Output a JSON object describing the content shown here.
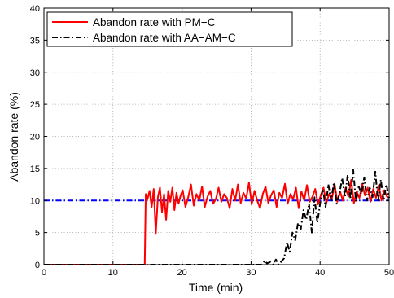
{
  "chart_data": {
    "type": "line",
    "xlabel": "Time (min)",
    "ylabel": "Abandon rate (%)",
    "xlim": [
      0,
      50
    ],
    "ylim": [
      0,
      40
    ],
    "xticks": [
      0,
      10,
      20,
      30,
      40,
      50
    ],
    "yticks": [
      0,
      5,
      10,
      15,
      20,
      25,
      30,
      35,
      40
    ],
    "x_tick_labels": [
      "0",
      "10",
      "20",
      "30",
      "40",
      "50"
    ],
    "y_tick_labels": [
      "0",
      "5",
      "10",
      "15",
      "20",
      "25",
      "30",
      "35",
      "40"
    ],
    "grid": true,
    "legend_position": "top-left",
    "target_line": {
      "y": 10,
      "color": "#0000ff",
      "style": "dash-dot"
    },
    "series": [
      {
        "name": "Abandon rate with PM−C",
        "color": "#ff0000",
        "style": "solid",
        "x": [
          0,
          14.6,
          14.75,
          15.0,
          15.3,
          15.6,
          15.9,
          16.2,
          16.5,
          16.8,
          17.1,
          17.4,
          17.7,
          18.0,
          18.3,
          18.6,
          18.9,
          19.2,
          19.5,
          19.8,
          20.1,
          20.5,
          20.9,
          21.3,
          21.7,
          22.1,
          22.5,
          22.9,
          23.3,
          23.7,
          24.1,
          24.5,
          24.9,
          25.3,
          25.7,
          26.1,
          26.5,
          26.9,
          27.3,
          27.7,
          28.1,
          28.5,
          28.9,
          29.3,
          29.7,
          30.1,
          30.5,
          30.9,
          31.3,
          31.7,
          32.1,
          32.5,
          32.9,
          33.3,
          33.7,
          34.1,
          34.5,
          34.9,
          35.3,
          35.7,
          36.1,
          36.5,
          36.9,
          37.3,
          37.7,
          38.1,
          38.5,
          38.9,
          39.3,
          39.7,
          40.1,
          40.5,
          40.9,
          41.3,
          41.7,
          42.1,
          42.5,
          42.9,
          43.3,
          43.7,
          44.1,
          44.5,
          44.9,
          45.3,
          45.7,
          46.1,
          46.5,
          46.9,
          47.3,
          47.7,
          48.1,
          48.5,
          48.9,
          49.3,
          49.7,
          50.0
        ],
        "y": [
          0,
          0,
          11.0,
          10.2,
          11.5,
          9.0,
          11.8,
          4.8,
          10.5,
          12.0,
          8.2,
          11.0,
          7.0,
          11.5,
          9.8,
          12.0,
          8.5,
          11.2,
          9.5,
          10.8,
          11.6,
          9.0,
          10.5,
          12.5,
          9.2,
          11.0,
          10.0,
          12.2,
          9.0,
          10.6,
          11.5,
          9.5,
          10.2,
          12.0,
          9.8,
          11.0,
          10.4,
          8.8,
          11.8,
          10.0,
          12.5,
          9.6,
          11.2,
          10.3,
          12.8,
          9.4,
          11.5,
          10.0,
          8.8,
          11.0,
          12.2,
          9.6,
          10.8,
          11.6,
          9.0,
          11.2,
          10.4,
          12.6,
          9.5,
          11.0,
          10.2,
          12.0,
          8.8,
          11.4,
          10.0,
          12.4,
          9.8,
          10.6,
          11.8,
          9.4,
          10.8,
          12.0,
          9.6,
          11.0,
          10.2,
          12.6,
          9.8,
          11.4,
          10.0,
          12.0,
          10.6,
          13.2,
          9.6,
          11.4,
          10.4,
          12.6,
          10.8,
          12.0,
          9.8,
          11.8,
          10.4,
          12.4,
          10.0,
          11.6,
          10.6,
          10.4
        ]
      },
      {
        "name": "Abandon rate with AA−AM−C",
        "color": "#000000",
        "style": "dash-dot",
        "x": [
          0,
          31.5,
          32.0,
          32.3,
          32.8,
          33.2,
          33.6,
          34.0,
          34.4,
          34.8,
          35.2,
          35.6,
          36.0,
          36.4,
          36.8,
          37.2,
          37.6,
          38.0,
          38.4,
          38.8,
          39.2,
          39.6,
          40.0,
          40.4,
          40.8,
          41.2,
          41.6,
          42.0,
          42.4,
          42.8,
          43.2,
          43.6,
          44.0,
          44.4,
          44.8,
          45.2,
          45.6,
          46.0,
          46.4,
          46.8,
          47.2,
          47.6,
          48.0,
          48.4,
          48.8,
          49.2,
          49.6,
          50.0
        ],
        "y": [
          0,
          0,
          0.6,
          0.2,
          0.4,
          0,
          0.8,
          0,
          0.5,
          1.0,
          3.5,
          2.0,
          5.0,
          3.8,
          6.5,
          5.5,
          8.5,
          7.0,
          9.5,
          5.0,
          10.5,
          6.5,
          9.5,
          11.8,
          9.0,
          12.5,
          10.0,
          12.8,
          9.5,
          11.0,
          13.5,
          10.5,
          14.0,
          10.2,
          14.8,
          9.8,
          12.2,
          11.0,
          13.6,
          10.0,
          12.0,
          10.5,
          14.5,
          9.8,
          13.2,
          10.0,
          12.5,
          10.4
        ]
      }
    ]
  }
}
